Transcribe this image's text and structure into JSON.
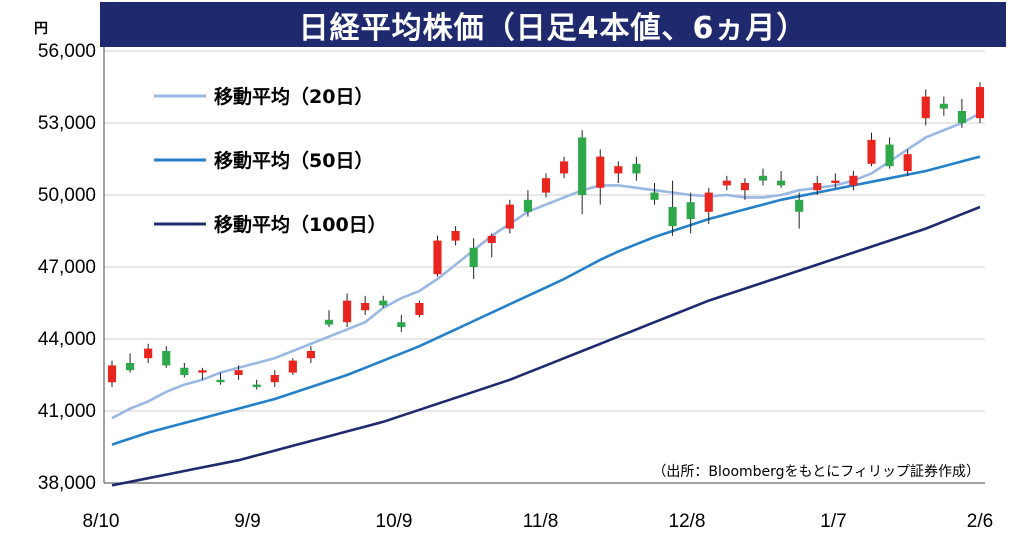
{
  "title": "日経平均株価（日足4本値、6ヵ月）",
  "unit": "円",
  "source": "（出所：Bloombergをもとにフィリップ証券作成）",
  "colors": {
    "title_bg": "#1f2a6e",
    "up": "#e8251f",
    "down": "#2ea84a",
    "ma20": "#9ab8e3",
    "ma50": "#2480c8",
    "ma100": "#1f2a6e"
  },
  "chart_data": {
    "type": "candlestick",
    "title": "日経平均株価（日足4本値、6ヵ月）",
    "ylim": [
      38000,
      56000
    ],
    "yticks": [
      "38,000",
      "41,000",
      "44,000",
      "47,000",
      "50,000",
      "53,000",
      "56,000"
    ],
    "ytick_values": [
      38000,
      41000,
      44000,
      47000,
      50000,
      53000,
      56000
    ],
    "xticks": [
      "8/10",
      "9/9",
      "10/9",
      "11/8",
      "12/8",
      "1/7",
      "2/6"
    ],
    "grid": "horizontal",
    "legend_placement": "top-left",
    "series": [
      {
        "name": "移動平均（20日）",
        "color": "#9ab8e3",
        "values": [
          40700,
          41100,
          41400,
          41800,
          42100,
          42300,
          42600,
          42800,
          43000,
          43200,
          43500,
          43800,
          44100,
          44400,
          44700,
          45300,
          45700,
          46000,
          46500,
          47100,
          47700,
          48300,
          48800,
          49300,
          49600,
          49900,
          50200,
          50400,
          50400,
          50300,
          50200,
          50100,
          50000,
          49950,
          50000,
          49900,
          49900,
          50000,
          50200,
          50300,
          50400,
          50600,
          50900,
          51400,
          51900,
          52400,
          52700,
          53000,
          53400
        ]
      },
      {
        "name": "移動平均（50日）",
        "color": "#2480c8",
        "values": [
          39600,
          39850,
          40100,
          40300,
          40500,
          40700,
          40900,
          41100,
          41300,
          41500,
          41750,
          42000,
          42250,
          42500,
          42800,
          43100,
          43400,
          43700,
          44050,
          44400,
          44750,
          45100,
          45450,
          45800,
          46150,
          46500,
          46900,
          47300,
          47650,
          47950,
          48250,
          48500,
          48750,
          49000,
          49200,
          49400,
          49600,
          49800,
          49950,
          50100,
          50250,
          50400,
          50550,
          50700,
          50850,
          51000,
          51200,
          51400,
          51600
        ]
      },
      {
        "name": "移動平均（100日）",
        "color": "#1f2a6e",
        "values": [
          37900,
          38050,
          38200,
          38350,
          38500,
          38650,
          38800,
          38950,
          39150,
          39350,
          39550,
          39750,
          39950,
          40150,
          40350,
          40550,
          40800,
          41050,
          41300,
          41550,
          41800,
          42050,
          42300,
          42600,
          42900,
          43200,
          43500,
          43800,
          44100,
          44400,
          44700,
          45000,
          45300,
          45600,
          45850,
          46100,
          46350,
          46600,
          46850,
          47100,
          47350,
          47600,
          47850,
          48100,
          48350,
          48600,
          48900,
          49200,
          49500
        ]
      }
    ],
    "candles": [
      {
        "o": 42200,
        "h": 43100,
        "l": 42000,
        "c": 42900
      },
      {
        "o": 43000,
        "h": 43400,
        "l": 42600,
        "c": 42700
      },
      {
        "o": 43200,
        "h": 43800,
        "l": 43000,
        "c": 43600
      },
      {
        "o": 43500,
        "h": 43700,
        "l": 42800,
        "c": 42900
      },
      {
        "o": 42800,
        "h": 43000,
        "l": 42400,
        "c": 42500
      },
      {
        "o": 42600,
        "h": 42800,
        "l": 42300,
        "c": 42700
      },
      {
        "o": 42300,
        "h": 42600,
        "l": 42100,
        "c": 42200
      },
      {
        "o": 42500,
        "h": 42900,
        "l": 42300,
        "c": 42700
      },
      {
        "o": 42100,
        "h": 42300,
        "l": 41900,
        "c": 42000
      },
      {
        "o": 42200,
        "h": 42700,
        "l": 42000,
        "c": 42500
      },
      {
        "o": 42600,
        "h": 43200,
        "l": 42500,
        "c": 43100
      },
      {
        "o": 43200,
        "h": 43700,
        "l": 43000,
        "c": 43500
      },
      {
        "o": 44800,
        "h": 45200,
        "l": 44500,
        "c": 44600
      },
      {
        "o": 44700,
        "h": 45900,
        "l": 44500,
        "c": 45600
      },
      {
        "o": 45200,
        "h": 45800,
        "l": 45000,
        "c": 45500
      },
      {
        "o": 45600,
        "h": 45800,
        "l": 45300,
        "c": 45400
      },
      {
        "o": 44700,
        "h": 45000,
        "l": 44300,
        "c": 44500
      },
      {
        "o": 45000,
        "h": 45600,
        "l": 44900,
        "c": 45500
      },
      {
        "o": 46700,
        "h": 48300,
        "l": 46600,
        "c": 48100
      },
      {
        "o": 48100,
        "h": 48700,
        "l": 47900,
        "c": 48500
      },
      {
        "o": 47800,
        "h": 48200,
        "l": 46500,
        "c": 47000
      },
      {
        "o": 48000,
        "h": 48400,
        "l": 47400,
        "c": 48300
      },
      {
        "o": 48600,
        "h": 49800,
        "l": 48400,
        "c": 49600
      },
      {
        "o": 49800,
        "h": 50200,
        "l": 49100,
        "c": 49300
      },
      {
        "o": 50100,
        "h": 50900,
        "l": 49900,
        "c": 50700
      },
      {
        "o": 50900,
        "h": 51600,
        "l": 50700,
        "c": 51400
      },
      {
        "o": 52400,
        "h": 52700,
        "l": 49200,
        "c": 50000
      },
      {
        "o": 50300,
        "h": 51900,
        "l": 49600,
        "c": 51600
      },
      {
        "o": 50900,
        "h": 51400,
        "l": 50500,
        "c": 51200
      },
      {
        "o": 51300,
        "h": 51600,
        "l": 50600,
        "c": 50900
      },
      {
        "o": 50100,
        "h": 50500,
        "l": 49600,
        "c": 49800
      },
      {
        "o": 49500,
        "h": 50600,
        "l": 48300,
        "c": 48700
      },
      {
        "o": 49700,
        "h": 50100,
        "l": 48400,
        "c": 49000
      },
      {
        "o": 49300,
        "h": 50300,
        "l": 48800,
        "c": 50100
      },
      {
        "o": 50400,
        "h": 50800,
        "l": 50200,
        "c": 50600
      },
      {
        "o": 50200,
        "h": 50700,
        "l": 49800,
        "c": 50500
      },
      {
        "o": 50800,
        "h": 51100,
        "l": 50400,
        "c": 50600
      },
      {
        "o": 50600,
        "h": 51000,
        "l": 50300,
        "c": 50400
      },
      {
        "o": 49800,
        "h": 50100,
        "l": 48600,
        "c": 49300
      },
      {
        "o": 50200,
        "h": 50800,
        "l": 50000,
        "c": 50500
      },
      {
        "o": 50500,
        "h": 50900,
        "l": 50300,
        "c": 50600
      },
      {
        "o": 50400,
        "h": 51000,
        "l": 50200,
        "c": 50800
      },
      {
        "o": 51300,
        "h": 52600,
        "l": 51200,
        "c": 52300
      },
      {
        "o": 52100,
        "h": 52400,
        "l": 51100,
        "c": 51200
      },
      {
        "o": 51000,
        "h": 51900,
        "l": 50800,
        "c": 51700
      },
      {
        "o": 53200,
        "h": 54400,
        "l": 52900,
        "c": 54100
      },
      {
        "o": 53800,
        "h": 54100,
        "l": 53300,
        "c": 53600
      },
      {
        "o": 53500,
        "h": 54000,
        "l": 52800,
        "c": 53000
      },
      {
        "o": 53200,
        "h": 54700,
        "l": 53000,
        "c": 54500
      }
    ]
  },
  "legend": [
    {
      "label": "移動平均（20日）",
      "color": "#9ab8e3"
    },
    {
      "label": "移動平均（50日）",
      "color": "#2480c8"
    },
    {
      "label": "移動平均（100日）",
      "color": "#1f2a6e"
    }
  ]
}
